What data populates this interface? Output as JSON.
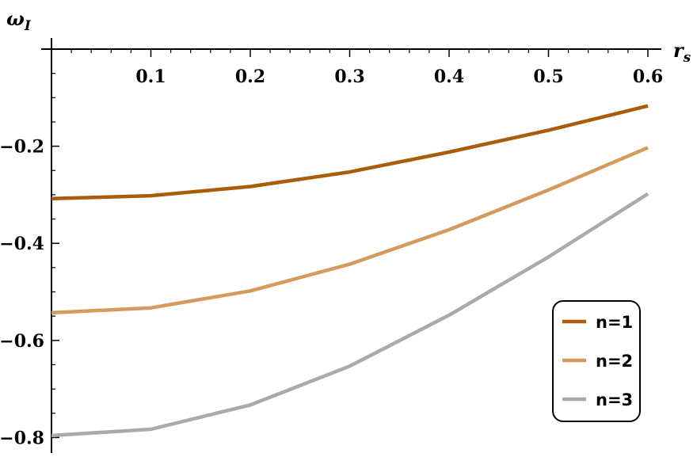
{
  "chart_data": {
    "type": "line",
    "title": "",
    "xlabel": "r",
    "xlabel_sub": "s",
    "ylabel": "ω",
    "ylabel_sub": "I",
    "xlim": [
      0,
      0.6
    ],
    "ylim": [
      -0.83,
      0.0
    ],
    "x": [
      0.0,
      0.1,
      0.2,
      0.3,
      0.4,
      0.5,
      0.6
    ],
    "x_ticks": [
      0.1,
      0.2,
      0.3,
      0.4,
      0.5,
      0.6
    ],
    "x_tick_labels": [
      "0.1",
      "0.2",
      "0.3",
      "0.4",
      "0.5",
      "0.6"
    ],
    "y_ticks": [
      -0.2,
      -0.4,
      -0.6,
      -0.8
    ],
    "y_tick_labels": [
      "−0.2",
      "−0.4",
      "−0.6",
      "−0.8"
    ],
    "grid": false,
    "legend": "bottom-right",
    "series": [
      {
        "name": "n=1",
        "color": "#a95c0a",
        "values": [
          -0.308,
          -0.302,
          -0.283,
          -0.253,
          -0.212,
          -0.167,
          -0.117
        ]
      },
      {
        "name": "n=2",
        "color": "#d59a5e",
        "values": [
          -0.543,
          -0.533,
          -0.498,
          -0.443,
          -0.372,
          -0.29,
          -0.203
        ]
      },
      {
        "name": "n=3",
        "color": "#aaaaaa",
        "values": [
          -0.796,
          -0.783,
          -0.733,
          -0.653,
          -0.548,
          -0.428,
          -0.298
        ]
      }
    ]
  }
}
